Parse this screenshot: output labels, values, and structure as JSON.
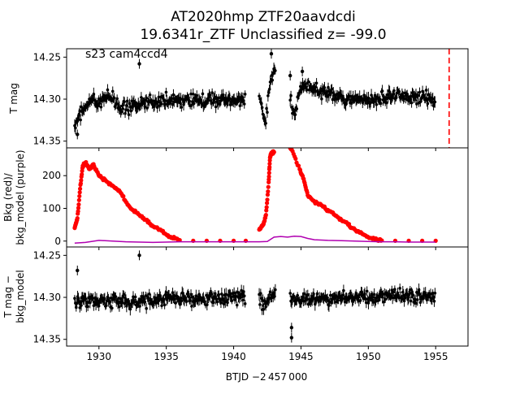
{
  "chart_data": {
    "type": "scatter",
    "title": "AT2020hmp  ZTF20aavdcdi",
    "subtitle": "19.6341r_ZTF Unclassified z= -99.0",
    "xlabel": "BTJD −2 457 000",
    "xlim": [
      1927.6,
      1957.4
    ],
    "x_ticks": [
      1930,
      1935,
      1940,
      1945,
      1950,
      1955
    ],
    "vertical_marker": {
      "x": 1956.0,
      "color": "#ff0000",
      "style": "dashed"
    },
    "panels": [
      {
        "id": "tmag",
        "ylabel": "T mag",
        "ylim": [
          14.358,
          14.24
        ],
        "inverted": true,
        "y_ticks": [
          14.25,
          14.3,
          14.35
        ],
        "annotation": "s23 cam4ccd4",
        "series": [
          {
            "color": "#000000",
            "marker": "errorbar",
            "segments": [
              {
                "x_start": 1928.2,
                "x_end": 1940.9,
                "points": [
                  [
                    1928.2,
                    14.332
                  ],
                  [
                    1928.6,
                    14.318
                  ],
                  [
                    1929.0,
                    14.31
                  ],
                  [
                    1929.5,
                    14.3
                  ],
                  [
                    1930.0,
                    14.305
                  ],
                  [
                    1930.5,
                    14.296
                  ],
                  [
                    1931.0,
                    14.3
                  ],
                  [
                    1931.5,
                    14.308
                  ],
                  [
                    1932.0,
                    14.31
                  ],
                  [
                    1932.5,
                    14.308
                  ],
                  [
                    1933.0,
                    14.306
                  ],
                  [
                    1934.0,
                    14.304
                  ],
                  [
                    1935.0,
                    14.302
                  ],
                  [
                    1936.0,
                    14.303
                  ],
                  [
                    1937.0,
                    14.302
                  ],
                  [
                    1938.0,
                    14.301
                  ],
                  [
                    1939.0,
                    14.302
                  ],
                  [
                    1940.0,
                    14.301
                  ],
                  [
                    1940.9,
                    14.302
                  ]
                ]
              },
              {
                "x_start": 1941.9,
                "x_end": 1943.1,
                "points": [
                  [
                    1941.9,
                    14.3
                  ],
                  [
                    1942.2,
                    14.315
                  ],
                  [
                    1942.4,
                    14.325
                  ],
                  [
                    1942.6,
                    14.29
                  ],
                  [
                    1942.8,
                    14.275
                  ],
                  [
                    1943.0,
                    14.268
                  ]
                ]
              },
              {
                "x_start": 1944.2,
                "x_end": 1955.0,
                "points": [
                  [
                    1944.2,
                    14.3
                  ],
                  [
                    1944.5,
                    14.32
                  ],
                  [
                    1945.0,
                    14.285
                  ],
                  [
                    1946.0,
                    14.288
                  ],
                  [
                    1947.0,
                    14.292
                  ],
                  [
                    1948.0,
                    14.298
                  ],
                  [
                    1949.0,
                    14.3
                  ],
                  [
                    1950.0,
                    14.302
                  ],
                  [
                    1951.0,
                    14.298
                  ],
                  [
                    1952.0,
                    14.296
                  ],
                  [
                    1953.0,
                    14.297
                  ],
                  [
                    1954.0,
                    14.298
                  ],
                  [
                    1955.0,
                    14.3
                  ]
                ]
              }
            ],
            "scatter_amplitude": 0.011,
            "outliers": [
              [
                1933.0,
                14.258
              ],
              [
                1942.8,
                14.246
              ],
              [
                1944.2,
                14.272
              ],
              [
                1945.1,
                14.267
              ],
              [
                1928.4,
                14.342
              ]
            ]
          }
        ]
      },
      {
        "id": "bkg",
        "ylabel": "Bkg (red)/\nbkg_model (purple)",
        "ylim": [
          -18,
          285
        ],
        "y_ticks": [
          0,
          100,
          200
        ],
        "series": [
          {
            "name": "Bkg",
            "color": "#ff0000",
            "marker": "dot",
            "points": [
              [
                1928.2,
                40
              ],
              [
                1928.4,
                70
              ],
              [
                1928.6,
                160
              ],
              [
                1928.8,
                230
              ],
              [
                1929.0,
                240
              ],
              [
                1929.3,
                220
              ],
              [
                1929.6,
                235
              ],
              [
                1930.0,
                200
              ],
              [
                1930.5,
                185
              ],
              [
                1931.0,
                170
              ],
              [
                1931.5,
                155
              ],
              [
                1932.0,
                120
              ],
              [
                1932.5,
                95
              ],
              [
                1933.0,
                80
              ],
              [
                1933.5,
                65
              ],
              [
                1934.0,
                45
              ],
              [
                1934.5,
                35
              ],
              [
                1935.0,
                20
              ],
              [
                1935.5,
                8
              ],
              [
                1936.0,
                3
              ],
              [
                1937.0,
                1
              ],
              [
                1938.0,
                1
              ],
              [
                1939.0,
                1
              ],
              [
                1940.0,
                1
              ],
              [
                1940.9,
                1
              ],
              [
                1941.9,
                35
              ],
              [
                1942.2,
                50
              ],
              [
                1942.4,
                80
              ],
              [
                1942.6,
                180
              ],
              [
                1942.7,
                255
              ],
              [
                1942.8,
                270
              ],
              [
                1943.0,
                272
              ],
              [
                1944.2,
                285
              ],
              [
                1944.3,
                280
              ],
              [
                1944.9,
                220
              ],
              [
                1945.2,
                190
              ],
              [
                1945.5,
                140
              ],
              [
                1946.0,
                120
              ],
              [
                1946.5,
                110
              ],
              [
                1947.0,
                95
              ],
              [
                1947.5,
                80
              ],
              [
                1948.0,
                65
              ],
              [
                1948.5,
                50
              ],
              [
                1949.0,
                35
              ],
              [
                1949.5,
                25
              ],
              [
                1950.0,
                12
              ],
              [
                1950.5,
                5
              ],
              [
                1951.0,
                2
              ],
              [
                1952.0,
                1
              ],
              [
                1953.0,
                1
              ],
              [
                1954.0,
                1
              ],
              [
                1955.0,
                1
              ]
            ]
          },
          {
            "name": "bkg_model",
            "color": "#b000b0",
            "marker": "line",
            "points": [
              [
                1928.2,
                -6
              ],
              [
                1929.0,
                -4
              ],
              [
                1930.0,
                2
              ],
              [
                1931.0,
                0
              ],
              [
                1932.0,
                -2
              ],
              [
                1933.0,
                -3
              ],
              [
                1934.0,
                -4
              ],
              [
                1935.0,
                -3
              ],
              [
                1936.0,
                -2
              ],
              [
                1937.0,
                -2
              ],
              [
                1938.0,
                -2
              ],
              [
                1939.0,
                -2
              ],
              [
                1940.0,
                -2
              ],
              [
                1940.9,
                -2
              ],
              [
                1941.9,
                -2
              ],
              [
                1942.5,
                -1
              ],
              [
                1943.0,
                12
              ],
              [
                1943.5,
                14
              ],
              [
                1944.0,
                12
              ],
              [
                1944.5,
                15
              ],
              [
                1945.0,
                14
              ],
              [
                1945.5,
                8
              ],
              [
                1946.0,
                4
              ],
              [
                1947.0,
                2
              ],
              [
                1948.0,
                1
              ],
              [
                1949.0,
                0
              ],
              [
                1950.0,
                -1
              ],
              [
                1951.0,
                -2
              ],
              [
                1952.0,
                -2
              ],
              [
                1953.0,
                -3
              ],
              [
                1954.0,
                -3
              ],
              [
                1955.0,
                -3
              ]
            ]
          }
        ]
      },
      {
        "id": "tmag_corr",
        "ylabel": "T mag −\nbkg_model",
        "ylim": [
          14.358,
          14.24
        ],
        "inverted": true,
        "y_ticks": [
          14.25,
          14.3,
          14.35
        ],
        "series": [
          {
            "color": "#000000",
            "marker": "errorbar",
            "segments": [
              {
                "x_start": 1928.2,
                "x_end": 1940.9,
                "points": [
                  [
                    1928.2,
                    14.305
                  ],
                  [
                    1929.0,
                    14.302
                  ],
                  [
                    1930.0,
                    14.305
                  ],
                  [
                    1931.0,
                    14.305
                  ],
                  [
                    1932.0,
                    14.305
                  ],
                  [
                    1933.0,
                    14.304
                  ],
                  [
                    1934.0,
                    14.303
                  ],
                  [
                    1935.0,
                    14.302
                  ],
                  [
                    1936.0,
                    14.302
                  ],
                  [
                    1937.0,
                    14.302
                  ],
                  [
                    1938.0,
                    14.301
                  ],
                  [
                    1939.0,
                    14.302
                  ],
                  [
                    1940.0,
                    14.301
                  ],
                  [
                    1940.9,
                    14.302
                  ]
                ]
              },
              {
                "x_start": 1941.9,
                "x_end": 1943.1,
                "points": [
                  [
                    1941.9,
                    14.3
                  ],
                  [
                    1942.3,
                    14.31
                  ],
                  [
                    1942.6,
                    14.3
                  ],
                  [
                    1943.0,
                    14.298
                  ]
                ]
              },
              {
                "x_start": 1944.2,
                "x_end": 1955.0,
                "points": [
                  [
                    1944.2,
                    14.302
                  ],
                  [
                    1945.0,
                    14.303
                  ],
                  [
                    1946.0,
                    14.302
                  ],
                  [
                    1947.0,
                    14.301
                  ],
                  [
                    1948.0,
                    14.302
                  ],
                  [
                    1949.0,
                    14.3
                  ],
                  [
                    1950.0,
                    14.3
                  ],
                  [
                    1951.0,
                    14.298
                  ],
                  [
                    1952.0,
                    14.297
                  ],
                  [
                    1953.0,
                    14.298
                  ],
                  [
                    1954.0,
                    14.299
                  ],
                  [
                    1955.0,
                    14.3
                  ]
                ]
              }
            ],
            "scatter_amplitude": 0.012,
            "outliers": [
              [
                1933.0,
                14.25
              ],
              [
                1928.4,
                14.268
              ],
              [
                1944.3,
                14.348
              ],
              [
                1944.3,
                14.336
              ]
            ]
          }
        ]
      }
    ]
  }
}
